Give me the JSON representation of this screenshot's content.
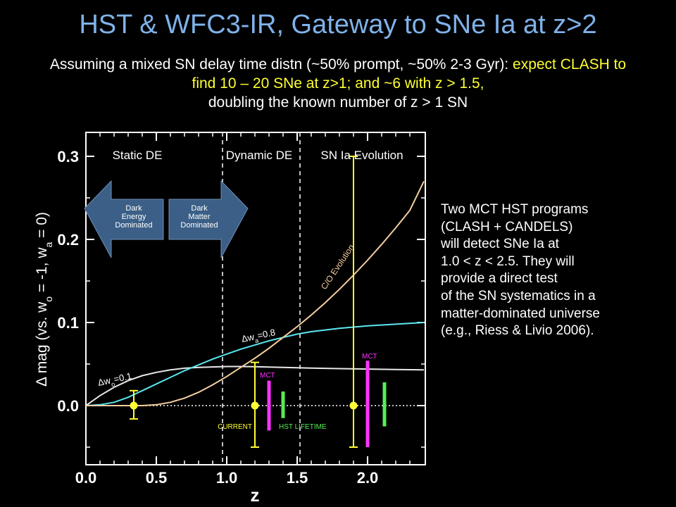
{
  "slide": {
    "title": "HST & WFC3-IR, Gateway to SNe Ia at z>2",
    "subtitle_white_1": "Assuming a mixed SN delay time distn (~50% prompt, ~50% 2-3 Gyr):",
    "subtitle_yellow": "expect CLASH to find 10 – 20 SNe at z>1; and ~6 with z > 1.5,",
    "subtitle_white_2": "doubling the known number of z > 1 SN"
  },
  "side_note": {
    "lines": [
      "Two MCT HST programs",
      "(CLASH + CANDELS)",
      "will detect SNe Ia at",
      "1.0 < z < 2.5. They will",
      "provide a direct test",
      "of the SN systematics in a",
      "matter-dominated universe",
      "(e.g., Riess & Livio 2006)."
    ]
  },
  "colors": {
    "title": "#7fb2ea",
    "highlight": "#ffff33",
    "w0_curve": "#e8e8e8",
    "wa_curve": "#5ce6f0",
    "co_curve": "#f5cfa0",
    "current": "#ffff33",
    "mct": "#ff33ff",
    "hst_lifetime": "#55ee55",
    "arrow": "#3b5f86"
  },
  "chart_data": {
    "type": "line",
    "xlabel": "z",
    "ylabel": "Δ mag (vs. w_o = -1, w_a = 0)",
    "ylabel_main": "Δ mag (vs. w",
    "ylabel_sub_o": "o",
    "ylabel_mid": " = -1, w",
    "ylabel_sub_a": "a",
    "ylabel_end": " = 0)",
    "xlim": [
      0,
      2.4
    ],
    "ylim": [
      -0.065,
      0.33
    ],
    "x_ticks": [
      "0.0",
      "0.5",
      "1.0",
      "1.5",
      "2.0"
    ],
    "y_ticks": [
      "0.0",
      "0.1",
      "0.2",
      "0.3"
    ],
    "regions": [
      "Static DE",
      "Dynamic DE",
      "SN Ia  Evolution"
    ],
    "region_boundaries": [
      0.97,
      1.52
    ],
    "arrows": [
      {
        "label": [
          "Dark",
          "Energy",
          "Dominated"
        ],
        "direction": "left"
      },
      {
        "label": [
          "Dark",
          "Matter",
          "Dominated"
        ],
        "direction": "right"
      }
    ],
    "series": [
      {
        "name": "Δw0=0.1",
        "label_main": "Δw",
        "label_sub": "o",
        "label_end": "=0.1",
        "x": [
          0,
          0.1,
          0.2,
          0.3,
          0.4,
          0.5,
          0.6,
          0.7,
          0.8,
          0.9,
          1.0,
          1.1,
          1.2,
          1.4,
          1.6,
          1.8,
          2.0,
          2.2,
          2.4
        ],
        "y": [
          0,
          0.012,
          0.022,
          0.03,
          0.036,
          0.04,
          0.043,
          0.045,
          0.046,
          0.0465,
          0.047,
          0.047,
          0.0468,
          0.046,
          0.0452,
          0.0445,
          0.044,
          0.0435,
          0.043
        ]
      },
      {
        "name": "Δwa=0.8",
        "label_main": "Δw",
        "label_sub": "a",
        "label_end": "=0.8",
        "x": [
          0,
          0.1,
          0.2,
          0.3,
          0.4,
          0.5,
          0.6,
          0.7,
          0.8,
          0.9,
          1.0,
          1.1,
          1.2,
          1.3,
          1.4,
          1.5,
          1.6,
          1.8,
          2.0,
          2.2,
          2.4
        ],
        "y": [
          0,
          0.001,
          0.004,
          0.01,
          0.018,
          0.026,
          0.034,
          0.042,
          0.049,
          0.056,
          0.062,
          0.068,
          0.073,
          0.078,
          0.082,
          0.086,
          0.089,
          0.093,
          0.096,
          0.098,
          0.1
        ]
      },
      {
        "name": "C/O Evolution",
        "x": [
          0,
          0.2,
          0.4,
          0.5,
          0.6,
          0.7,
          0.8,
          0.9,
          1.0,
          1.1,
          1.2,
          1.3,
          1.4,
          1.5,
          1.6,
          1.7,
          1.8,
          1.9,
          2.0,
          2.1,
          2.2,
          2.3,
          2.4
        ],
        "y": [
          0,
          0,
          0,
          0.001,
          0.004,
          0.009,
          0.016,
          0.025,
          0.035,
          0.046,
          0.057,
          0.069,
          0.082,
          0.095,
          0.109,
          0.124,
          0.14,
          0.157,
          0.175,
          0.194,
          0.214,
          0.235,
          0.27
        ]
      }
    ],
    "points": [
      {
        "name": "CURRENT",
        "x": 0.34,
        "y": 0,
        "err_low": -0.016,
        "err_high": 0.018
      },
      {
        "name": "CURRENT",
        "x": 1.2,
        "y": 0,
        "err_low": -0.05,
        "err_high": 0.052
      },
      {
        "name": "CURRENT",
        "x": 1.9,
        "y": 0,
        "err_low": -0.05,
        "err_high": 0.3
      }
    ],
    "bars": [
      {
        "group": "MCT",
        "x": 1.3,
        "low": -0.03,
        "high": 0.03
      },
      {
        "group": "HST LIFETIME",
        "x": 1.4,
        "low": -0.015,
        "high": 0.017
      },
      {
        "group": "MCT",
        "x": 2.0,
        "low": -0.05,
        "high": 0.054
      },
      {
        "group": "HST LIFETIME",
        "x": 2.12,
        "low": -0.025,
        "high": 0.028
      }
    ],
    "labels": {
      "current": "CURRENT",
      "hst_lifetime": "HST LIFETIME",
      "mct": "MCT",
      "co_evolution": "C/O Evolution"
    }
  }
}
